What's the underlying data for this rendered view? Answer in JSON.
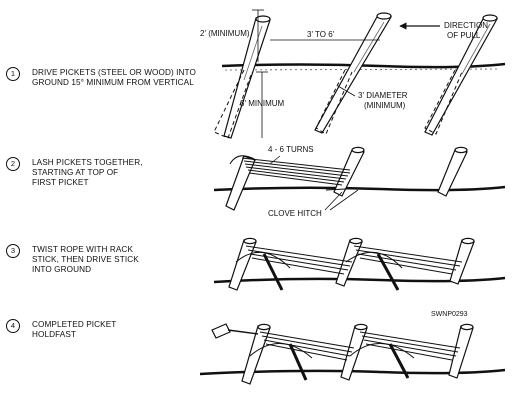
{
  "steps": [
    {
      "number": "1",
      "text": "DRIVE PICKETS (STEEL OR WOOD) INTO\nGROUND 15°  MINIMUM FROM VERTICAL"
    },
    {
      "number": "2",
      "text": "LASH PICKETS TOGETHER,\nSTARTING AT TOP OF\nFIRST PICKET"
    },
    {
      "number": "3",
      "text": "TWIST ROPE WITH RACK\nSTICK, THEN DRIVE STICK\nINTO GROUND"
    },
    {
      "number": "4",
      "text": "COMPLETED PICKET\nHOLDFAST"
    }
  ],
  "labels": {
    "min2": "2' (MINIMUM)",
    "spacing": "3' TO 6'",
    "direction1": "DIRECTION",
    "direction2": "OF PULL",
    "min3": "3' MINIMUM",
    "diameter1": "3' DIAMETER",
    "diameter2": "(MINIMUM)",
    "turns": "4 - 6 TURNS",
    "clove": "CLOVE HITCH",
    "code": "SWNP0293"
  }
}
